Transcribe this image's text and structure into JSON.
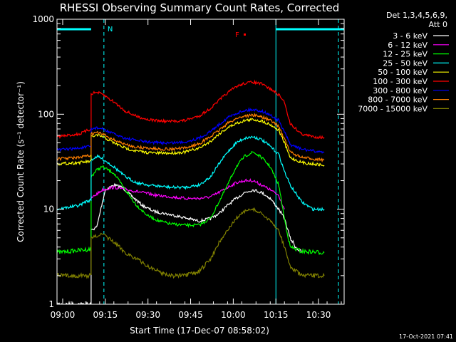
{
  "chart_data": {
    "type": "line",
    "title": "RHESSI Observing Summary Count Rates, Corrected",
    "xlabel": "Start Time (17-Dec-07 08:58:02)",
    "ylabel": "Corrected Count Rate (s⁻¹ detector⁻¹)",
    "ylim": [
      1,
      1000
    ],
    "yscale": "log",
    "xlim_min": [
      0,
      101
    ],
    "x_ticks": [
      "09:00",
      "09:15",
      "09:30",
      "09:45",
      "10:00",
      "10:15",
      "10:30"
    ],
    "x_tick_min": [
      2,
      17,
      32,
      47,
      62,
      77,
      92
    ],
    "y_ticks": [
      "1",
      "10",
      "100",
      "1000"
    ],
    "y_tick_vals": [
      1,
      10,
      100,
      1000
    ],
    "legend": {
      "header": "Det 1,3,4,5,6,9,",
      "header2": "Att 0",
      "placement": "right"
    },
    "series": [
      {
        "name": "3 - 6 keV",
        "color": "#ffffff",
        "points": [
          [
            0,
            1
          ],
          [
            12,
            1
          ],
          [
            12,
            6
          ],
          [
            14,
            6.5
          ],
          [
            16,
            12
          ],
          [
            17,
            16
          ],
          [
            20,
            18
          ],
          [
            23,
            17
          ],
          [
            26,
            14
          ],
          [
            30,
            11
          ],
          [
            34,
            9.5
          ],
          [
            38,
            9
          ],
          [
            42,
            8.5
          ],
          [
            46,
            8
          ],
          [
            50,
            7.5
          ],
          [
            54,
            8
          ],
          [
            57,
            9
          ],
          [
            60,
            11
          ],
          [
            63,
            13
          ],
          [
            66,
            15
          ],
          [
            69,
            16
          ],
          [
            72,
            15
          ],
          [
            75,
            13
          ],
          [
            78,
            10
          ],
          [
            80,
            8
          ],
          [
            82,
            5
          ],
          [
            84,
            4
          ],
          [
            86,
            3.5
          ]
        ]
      },
      {
        "name": "6 - 12 keV",
        "color": "#ff00ff",
        "points": [
          [
            12,
            13
          ],
          [
            14,
            14.5
          ],
          [
            16,
            16
          ],
          [
            20,
            17
          ],
          [
            25,
            16
          ],
          [
            30,
            15
          ],
          [
            35,
            14
          ],
          [
            40,
            13.5
          ],
          [
            45,
            13
          ],
          [
            50,
            13
          ],
          [
            54,
            13.5
          ],
          [
            57,
            15
          ],
          [
            60,
            17
          ],
          [
            63,
            19
          ],
          [
            66,
            20
          ],
          [
            69,
            20
          ],
          [
            72,
            18
          ],
          [
            75,
            16
          ],
          [
            78,
            14
          ],
          [
            80,
            10
          ]
        ]
      },
      {
        "name": "12 - 25 keV",
        "color": "#00ff00",
        "points": [
          [
            0,
            3.5
          ],
          [
            12,
            3.8
          ],
          [
            12,
            22
          ],
          [
            14,
            26
          ],
          [
            16,
            28
          ],
          [
            20,
            24
          ],
          [
            24,
            16
          ],
          [
            28,
            11
          ],
          [
            32,
            8.5
          ],
          [
            36,
            7.5
          ],
          [
            40,
            7
          ],
          [
            45,
            6.8
          ],
          [
            50,
            6.8
          ],
          [
            54,
            8
          ],
          [
            57,
            12
          ],
          [
            60,
            18
          ],
          [
            63,
            28
          ],
          [
            66,
            36
          ],
          [
            69,
            40
          ],
          [
            72,
            35
          ],
          [
            75,
            28
          ],
          [
            78,
            18
          ],
          [
            80,
            8
          ],
          [
            82,
            4
          ],
          [
            86,
            3.6
          ],
          [
            94,
            3.5
          ]
        ]
      },
      {
        "name": "25 - 50 keV",
        "color": "#00ffff",
        "points": [
          [
            0,
            10
          ],
          [
            8,
            11
          ],
          [
            10,
            12
          ],
          [
            12,
            12.5
          ],
          [
            12,
            33
          ],
          [
            14,
            36
          ],
          [
            16,
            34
          ],
          [
            20,
            28
          ],
          [
            24,
            22
          ],
          [
            28,
            19
          ],
          [
            32,
            18
          ],
          [
            36,
            17.5
          ],
          [
            40,
            17
          ],
          [
            45,
            17
          ],
          [
            50,
            18
          ],
          [
            54,
            22
          ],
          [
            57,
            30
          ],
          [
            60,
            40
          ],
          [
            63,
            50
          ],
          [
            66,
            56
          ],
          [
            69,
            58
          ],
          [
            72,
            54
          ],
          [
            75,
            46
          ],
          [
            78,
            38
          ],
          [
            80,
            25
          ],
          [
            82,
            18
          ],
          [
            86,
            12
          ],
          [
            90,
            10
          ],
          [
            94,
            10
          ]
        ]
      },
      {
        "name": "50 - 100 keV",
        "color": "#ffff00",
        "points": [
          [
            0,
            30
          ],
          [
            8,
            31
          ],
          [
            12,
            32
          ],
          [
            12,
            58
          ],
          [
            14,
            60
          ],
          [
            16,
            58
          ],
          [
            20,
            50
          ],
          [
            24,
            44
          ],
          [
            28,
            41
          ],
          [
            32,
            39.5
          ],
          [
            36,
            39
          ],
          [
            40,
            39
          ],
          [
            45,
            40
          ],
          [
            50,
            44
          ],
          [
            54,
            52
          ],
          [
            57,
            62
          ],
          [
            60,
            72
          ],
          [
            63,
            80
          ],
          [
            66,
            86
          ],
          [
            69,
            88
          ],
          [
            72,
            85
          ],
          [
            75,
            78
          ],
          [
            78,
            68
          ],
          [
            80,
            50
          ],
          [
            82,
            35
          ],
          [
            86,
            31
          ],
          [
            90,
            30
          ],
          [
            94,
            29
          ]
        ]
      },
      {
        "name": "100 - 300 keV",
        "color": "#ff0000",
        "points": [
          [
            0,
            58
          ],
          [
            8,
            62
          ],
          [
            10,
            66
          ],
          [
            12,
            70
          ],
          [
            12,
            165
          ],
          [
            14,
            170
          ],
          [
            16,
            162
          ],
          [
            20,
            135
          ],
          [
            24,
            108
          ],
          [
            28,
            95
          ],
          [
            32,
            88
          ],
          [
            36,
            85
          ],
          [
            40,
            84
          ],
          [
            45,
            86
          ],
          [
            50,
            96
          ],
          [
            54,
            115
          ],
          [
            57,
            140
          ],
          [
            60,
            168
          ],
          [
            63,
            195
          ],
          [
            66,
            212
          ],
          [
            69,
            218
          ],
          [
            72,
            208
          ],
          [
            75,
            185
          ],
          [
            78,
            160
          ],
          [
            80,
            135
          ],
          [
            82,
            80
          ],
          [
            86,
            62
          ],
          [
            90,
            58
          ],
          [
            94,
            57
          ]
        ]
      },
      {
        "name": "300 - 800 keV",
        "color": "#0000ff",
        "points": [
          [
            0,
            42
          ],
          [
            8,
            44
          ],
          [
            12,
            46
          ],
          [
            12,
            70
          ],
          [
            14,
            72
          ],
          [
            16,
            70
          ],
          [
            20,
            62
          ],
          [
            24,
            56
          ],
          [
            28,
            53
          ],
          [
            32,
            51
          ],
          [
            36,
            50
          ],
          [
            40,
            50
          ],
          [
            45,
            51
          ],
          [
            50,
            56
          ],
          [
            54,
            66
          ],
          [
            57,
            78
          ],
          [
            60,
            92
          ],
          [
            63,
            102
          ],
          [
            66,
            110
          ],
          [
            69,
            112
          ],
          [
            72,
            108
          ],
          [
            75,
            98
          ],
          [
            78,
            86
          ],
          [
            80,
            65
          ],
          [
            82,
            48
          ],
          [
            86,
            43
          ],
          [
            90,
            41
          ],
          [
            94,
            40
          ]
        ]
      },
      {
        "name": "800 - 7000 keV",
        "color": "#ff7f00",
        "points": [
          [
            0,
            34
          ],
          [
            8,
            35
          ],
          [
            12,
            37
          ],
          [
            12,
            62
          ],
          [
            14,
            64
          ],
          [
            16,
            62
          ],
          [
            20,
            54
          ],
          [
            24,
            48
          ],
          [
            28,
            45
          ],
          [
            32,
            44
          ],
          [
            36,
            43
          ],
          [
            40,
            43
          ],
          [
            45,
            44
          ],
          [
            50,
            49
          ],
          [
            54,
            58
          ],
          [
            57,
            68
          ],
          [
            60,
            80
          ],
          [
            63,
            90
          ],
          [
            66,
            96
          ],
          [
            69,
            98
          ],
          [
            72,
            94
          ],
          [
            75,
            86
          ],
          [
            78,
            75
          ],
          [
            80,
            55
          ],
          [
            82,
            40
          ],
          [
            86,
            35
          ],
          [
            90,
            34
          ],
          [
            94,
            33
          ]
        ]
      },
      {
        "name": "7000 - 15000 keV",
        "color": "#808000",
        "points": [
          [
            0,
            2
          ],
          [
            12,
            2
          ],
          [
            12,
            5
          ],
          [
            16,
            5.5
          ],
          [
            20,
            4.5
          ],
          [
            24,
            3.5
          ],
          [
            28,
            3
          ],
          [
            32,
            2.5
          ],
          [
            36,
            2.2
          ],
          [
            40,
            2
          ],
          [
            45,
            2
          ],
          [
            50,
            2.2
          ],
          [
            54,
            3
          ],
          [
            57,
            4.5
          ],
          [
            60,
            6
          ],
          [
            63,
            8
          ],
          [
            66,
            9.5
          ],
          [
            69,
            10
          ],
          [
            72,
            9
          ],
          [
            75,
            7.5
          ],
          [
            78,
            6
          ],
          [
            80,
            4
          ],
          [
            82,
            2.5
          ],
          [
            86,
            2
          ],
          [
            94,
            2
          ]
        ]
      }
    ],
    "night_bars": [
      [
        0,
        12
      ],
      [
        77,
        101
      ]
    ],
    "saa_markers_min": [
      16.5,
      77,
      99
    ],
    "flag_labels": {
      "N": "N",
      "F": "F"
    }
  },
  "timestamp": "17-Oct-2021 07:41",
  "colors": {
    "background": "#000000",
    "axis": "#ffffff",
    "night_bar": "#00ffff"
  }
}
